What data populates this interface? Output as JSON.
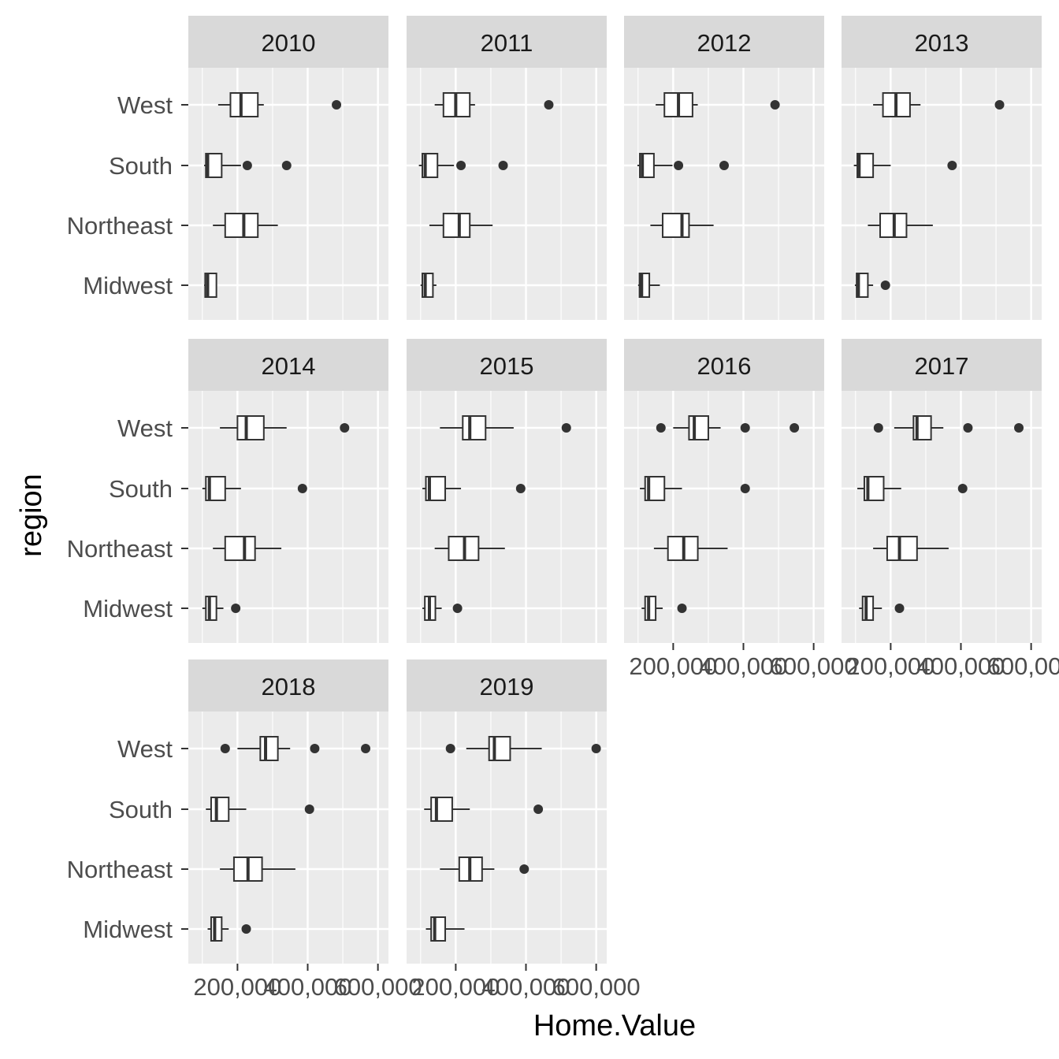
{
  "chart_data": {
    "type": "boxplot",
    "facet_variable": "year",
    "xlabel": "Home.Value",
    "ylabel": "region",
    "x_ticks": [
      200000,
      400000,
      600000
    ],
    "x_tick_labels": [
      "200,000",
      "400,000",
      "600,000"
    ],
    "xlim": [
      60000,
      630000
    ],
    "categories": [
      "West",
      "South",
      "Northeast",
      "Midwest"
    ],
    "grid": true,
    "panels": [
      {
        "label": "2010",
        "boxes": {
          "West": {
            "min": 145000,
            "q1": 180000,
            "median": 210000,
            "q3": 258000,
            "max": 275000,
            "outliers": [
              482000
            ]
          },
          "South": {
            "min": 105000,
            "q1": 110000,
            "median": 115000,
            "q3": 155000,
            "max": 210000,
            "outliers": [
              228000,
              340000
            ]
          },
          "Northeast": {
            "min": 130000,
            "q1": 165000,
            "median": 218000,
            "q3": 258000,
            "max": 315000,
            "outliers": []
          },
          "Midwest": {
            "min": 105000,
            "q1": 108000,
            "median": 115000,
            "q3": 140000,
            "max": 142000,
            "outliers": []
          }
        }
      },
      {
        "label": "2011",
        "boxes": {
          "West": {
            "min": 140000,
            "q1": 165000,
            "median": 200000,
            "q3": 240000,
            "max": 255000,
            "outliers": [
              465000
            ]
          },
          "South": {
            "min": 95000,
            "q1": 105000,
            "median": 113000,
            "q3": 148000,
            "max": 195000,
            "outliers": [
              215000,
              335000
            ]
          },
          "Northeast": {
            "min": 125000,
            "q1": 165000,
            "median": 210000,
            "q3": 240000,
            "max": 305000,
            "outliers": []
          },
          "Midwest": {
            "min": 100000,
            "q1": 105000,
            "median": 113000,
            "q3": 135000,
            "max": 145000,
            "outliers": []
          }
        }
      },
      {
        "label": "2012",
        "boxes": {
          "West": {
            "min": 150000,
            "q1": 175000,
            "median": 215000,
            "q3": 255000,
            "max": 270000,
            "outliers": [
              490000
            ]
          },
          "South": {
            "min": 98000,
            "q1": 105000,
            "median": 112000,
            "q3": 145000,
            "max": 198000,
            "outliers": [
              215000,
              345000
            ]
          },
          "Northeast": {
            "min": 135000,
            "q1": 170000,
            "median": 225000,
            "q3": 245000,
            "max": 315000,
            "outliers": []
          },
          "Midwest": {
            "min": 100000,
            "q1": 104000,
            "median": 110000,
            "q3": 132000,
            "max": 162000,
            "outliers": []
          }
        }
      },
      {
        "label": "2013",
        "boxes": {
          "West": {
            "min": 150000,
            "q1": 178000,
            "median": 215000,
            "q3": 255000,
            "max": 285000,
            "outliers": [
              510000
            ]
          },
          "South": {
            "min": 95000,
            "q1": 105000,
            "median": 110000,
            "q3": 150000,
            "max": 200000,
            "outliers": [
              375000
            ]
          },
          "Northeast": {
            "min": 135000,
            "q1": 170000,
            "median": 210000,
            "q3": 245000,
            "max": 320000,
            "outliers": []
          },
          "Midwest": {
            "min": 98000,
            "q1": 103000,
            "median": 108000,
            "q3": 135000,
            "max": 150000,
            "outliers": [
              185000
            ]
          }
        }
      },
      {
        "label": "2014",
        "boxes": {
          "West": {
            "min": 150000,
            "q1": 200000,
            "median": 225000,
            "q3": 275000,
            "max": 340000,
            "outliers": [
              505000
            ]
          },
          "South": {
            "min": 100000,
            "q1": 110000,
            "median": 120000,
            "q3": 165000,
            "max": 210000,
            "outliers": [
              385000
            ]
          },
          "Northeast": {
            "min": 130000,
            "q1": 165000,
            "median": 220000,
            "q3": 250000,
            "max": 325000,
            "outliers": []
          },
          "Midwest": {
            "min": 100000,
            "q1": 110000,
            "median": 120000,
            "q3": 140000,
            "max": 160000,
            "outliers": [
              195000
            ]
          }
        }
      },
      {
        "label": "2015",
        "boxes": {
          "West": {
            "min": 155000,
            "q1": 220000,
            "median": 240000,
            "q3": 285000,
            "max": 365000,
            "outliers": [
              515000
            ]
          },
          "South": {
            "min": 105000,
            "q1": 115000,
            "median": 125000,
            "q3": 170000,
            "max": 215000,
            "outliers": [
              385000
            ]
          },
          "Northeast": {
            "min": 140000,
            "q1": 180000,
            "median": 225000,
            "q3": 265000,
            "max": 340000,
            "outliers": []
          },
          "Midwest": {
            "min": 105000,
            "q1": 112000,
            "median": 125000,
            "q3": 142000,
            "max": 160000,
            "outliers": [
              205000
            ]
          }
        }
      },
      {
        "label": "2016",
        "boxes": {
          "West": {
            "min": 200000,
            "q1": 245000,
            "median": 260000,
            "q3": 300000,
            "max": 335000,
            "outliers": [
              165000,
              405000,
              545000
            ]
          },
          "South": {
            "min": 105000,
            "q1": 120000,
            "median": 130000,
            "q3": 175000,
            "max": 225000,
            "outliers": [
              405000
            ]
          },
          "Northeast": {
            "min": 145000,
            "q1": 185000,
            "median": 230000,
            "q3": 270000,
            "max": 355000,
            "outliers": []
          },
          "Midwest": {
            "min": 110000,
            "q1": 120000,
            "median": 130000,
            "q3": 150000,
            "max": 170000,
            "outliers": [
              225000
            ]
          }
        }
      },
      {
        "label": "2017",
        "boxes": {
          "West": {
            "min": 210000,
            "q1": 265000,
            "median": 275000,
            "q3": 315000,
            "max": 350000,
            "outliers": [
              165000,
              420000,
              565000
            ]
          },
          "South": {
            "min": 105000,
            "q1": 125000,
            "median": 135000,
            "q3": 180000,
            "max": 230000,
            "outliers": [
              405000
            ]
          },
          "Northeast": {
            "min": 150000,
            "q1": 190000,
            "median": 225000,
            "q3": 275000,
            "max": 365000,
            "outliers": []
          },
          "Midwest": {
            "min": 110000,
            "q1": 120000,
            "median": 130000,
            "q3": 150000,
            "max": 175000,
            "outliers": [
              225000
            ]
          }
        }
      },
      {
        "label": "2018",
        "boxes": {
          "West": {
            "min": 200000,
            "q1": 265000,
            "median": 280000,
            "q3": 315000,
            "max": 350000,
            "outliers": [
              165000,
              420000,
              565000
            ]
          },
          "South": {
            "min": 110000,
            "q1": 125000,
            "median": 140000,
            "q3": 175000,
            "max": 225000,
            "outliers": [
              405000
            ]
          },
          "Northeast": {
            "min": 150000,
            "q1": 190000,
            "median": 230000,
            "q3": 270000,
            "max": 365000,
            "outliers": []
          },
          "Midwest": {
            "min": 115000,
            "q1": 125000,
            "median": 135000,
            "q3": 155000,
            "max": 175000,
            "outliers": [
              225000
            ]
          }
        }
      },
      {
        "label": "2019",
        "boxes": {
          "West": {
            "min": 230000,
            "q1": 295000,
            "median": 310000,
            "q3": 355000,
            "max": 445000,
            "outliers": [
              185000,
              600000
            ]
          },
          "South": {
            "min": 110000,
            "q1": 130000,
            "median": 145000,
            "q3": 190000,
            "max": 240000,
            "outliers": [
              435000
            ]
          },
          "Northeast": {
            "min": 155000,
            "q1": 210000,
            "median": 240000,
            "q3": 275000,
            "max": 310000,
            "outliers": [
              395000
            ]
          },
          "Midwest": {
            "min": 115000,
            "q1": 130000,
            "median": 140000,
            "q3": 170000,
            "max": 225000,
            "outliers": []
          }
        }
      }
    ]
  },
  "colors": {
    "panel_bg": "#ebebeb",
    "strip_bg": "#d9d9d9",
    "grid": "#ffffff",
    "box_fill": "#ffffff",
    "box_line": "#333333",
    "tick": "#333333"
  }
}
